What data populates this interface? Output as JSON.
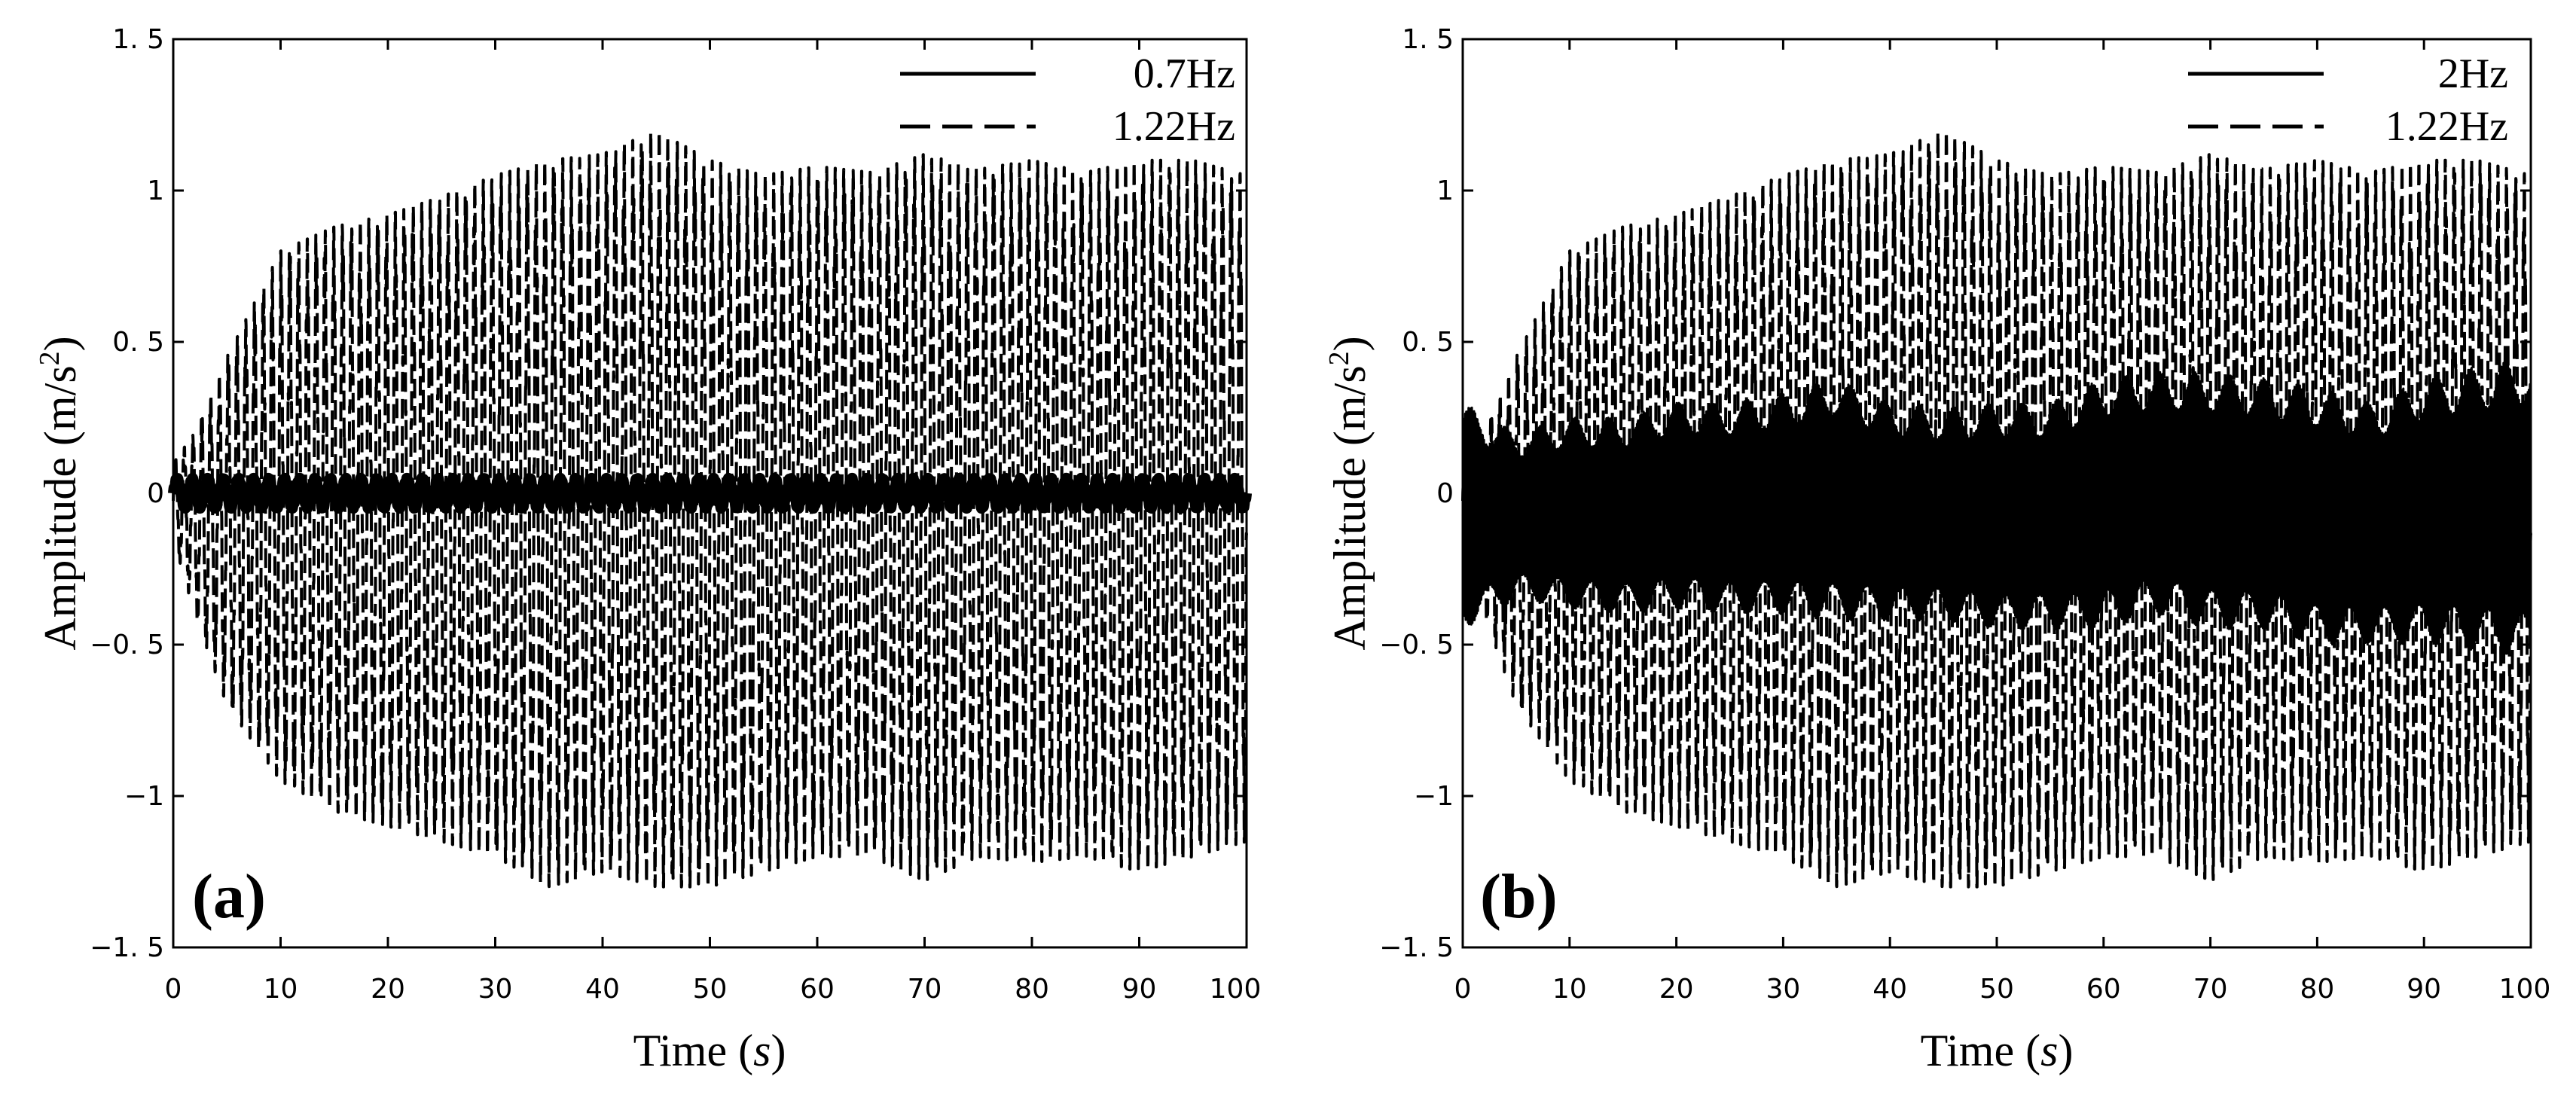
{
  "chart_data": [
    {
      "type": "line",
      "panel_label": "(a)",
      "xlabel": "Time (s)",
      "xlabel_main": "Time (",
      "xlabel_unit": "s",
      "xlabel_close": ")",
      "ylabel": "Amplitude (m/s2)",
      "ylabel_main": "Amplitude (m/s",
      "ylabel_sup": "2",
      "ylabel_close": ")",
      "xlim": [
        0,
        100
      ],
      "ylim": [
        -1.5,
        1.5
      ],
      "xticks": [
        0,
        10,
        20,
        30,
        40,
        50,
        60,
        70,
        80,
        90,
        100
      ],
      "xtick_labels": [
        "0",
        "10",
        "20",
        "30",
        "40",
        "50",
        "60",
        "70",
        "80",
        "90",
        "100"
      ],
      "yticks": [
        1.5,
        1,
        0.5,
        0,
        -0.5,
        -1,
        -1.5
      ],
      "ytick_labels": [
        "1. 5",
        "1",
        "0. 5",
        "0",
        "−0. 5",
        "−1",
        "−1. 5"
      ],
      "grid": false,
      "legend_position": "top-right",
      "series": [
        {
          "name": "0.7Hz",
          "style": "solid",
          "frequency_hz": 0.7,
          "envelope": {
            "t": [
              0,
              100
            ],
            "peak": [
              0.05,
              0.05
            ]
          }
        },
        {
          "name": "1.22Hz",
          "style": "dashed",
          "frequency_hz": 1.22,
          "envelope": {
            "t": [
              0,
              2,
              5,
              10,
              15,
              20,
              25,
              30,
              35,
              40,
              45,
              50,
              55,
              60,
              65,
              70,
              75,
              80,
              85,
              90,
              95,
              100
            ],
            "max": [
              0.1,
              0.2,
              0.45,
              0.8,
              0.88,
              0.92,
              0.98,
              1.05,
              1.1,
              1.12,
              1.2,
              1.1,
              1.05,
              1.08,
              1.06,
              1.12,
              1.07,
              1.1,
              1.06,
              1.1,
              1.1,
              1.05
            ],
            "min": [
              -0.15,
              -0.4,
              -0.7,
              -0.95,
              -1.05,
              -1.1,
              -1.15,
              -1.2,
              -1.3,
              -1.25,
              -1.3,
              -1.3,
              -1.25,
              -1.2,
              -1.2,
              -1.28,
              -1.2,
              -1.22,
              -1.2,
              -1.25,
              -1.2,
              -1.15
            ]
          }
        }
      ]
    },
    {
      "type": "line",
      "panel_label": "(b)",
      "xlabel": "Time (s)",
      "xlabel_main": "Time (",
      "xlabel_unit": "s",
      "xlabel_close": ")",
      "ylabel": "Amplitude (m/s2)",
      "ylabel_main": "Amplitude (m/s",
      "ylabel_sup": "2",
      "ylabel_close": ")",
      "xlim": [
        0,
        100
      ],
      "ylim": [
        -1.5,
        1.5
      ],
      "xticks": [
        0,
        10,
        20,
        30,
        40,
        50,
        60,
        70,
        80,
        90,
        100
      ],
      "xtick_labels": [
        "0",
        "10",
        "20",
        "30",
        "40",
        "50",
        "60",
        "70",
        "80",
        "90",
        "100"
      ],
      "yticks": [
        1.5,
        1,
        0.5,
        0,
        -0.5,
        -1,
        -1.5
      ],
      "ytick_labels": [
        "1. 5",
        "1",
        "0. 5",
        "0",
        "−0. 5",
        "−1",
        "−1. 5"
      ],
      "grid": false,
      "legend_position": "top-right",
      "series": [
        {
          "name": "2Hz",
          "style": "solid",
          "frequency_hz": 2,
          "envelope": {
            "t": [
              0,
              5,
              10,
              15,
              20,
              25,
              30,
              35,
              40,
              45,
              50,
              55,
              60,
              65,
              70,
              75,
              80,
              85,
              90,
              95,
              100
            ],
            "max": [
              0.3,
              0.2,
              0.25,
              0.25,
              0.3,
              0.3,
              0.33,
              0.38,
              0.3,
              0.28,
              0.3,
              0.3,
              0.38,
              0.4,
              0.4,
              0.38,
              0.35,
              0.3,
              0.38,
              0.42,
              0.45
            ],
            "min": [
              -0.45,
              -0.35,
              -0.38,
              -0.4,
              -0.38,
              -0.4,
              -0.4,
              -0.42,
              -0.42,
              -0.42,
              -0.45,
              -0.45,
              -0.45,
              -0.4,
              -0.45,
              -0.45,
              -0.5,
              -0.5,
              -0.5,
              -0.52,
              -0.55
            ]
          }
        },
        {
          "name": "1.22Hz",
          "style": "dashed",
          "frequency_hz": 1.22,
          "envelope": {
            "t": [
              0,
              2,
              5,
              10,
              15,
              20,
              25,
              30,
              35,
              40,
              45,
              50,
              55,
              60,
              65,
              70,
              75,
              80,
              85,
              90,
              95,
              100
            ],
            "max": [
              0.1,
              0.2,
              0.45,
              0.8,
              0.88,
              0.92,
              0.98,
              1.05,
              1.1,
              1.12,
              1.2,
              1.1,
              1.05,
              1.08,
              1.06,
              1.12,
              1.07,
              1.1,
              1.06,
              1.1,
              1.1,
              1.05
            ],
            "min": [
              -0.15,
              -0.4,
              -0.7,
              -0.95,
              -1.05,
              -1.1,
              -1.15,
              -1.2,
              -1.3,
              -1.25,
              -1.3,
              -1.3,
              -1.25,
              -1.2,
              -1.2,
              -1.28,
              -1.2,
              -1.22,
              -1.2,
              -1.25,
              -1.2,
              -1.15
            ]
          }
        }
      ]
    }
  ],
  "colors": {
    "ink": "#000000",
    "background": "#ffffff"
  }
}
